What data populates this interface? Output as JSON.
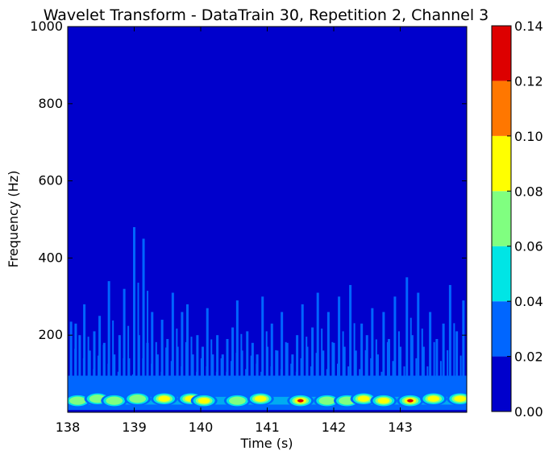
{
  "chart_data": {
    "type": "heatmap",
    "title": "Wavelet Transform - DataTrain 30, Repetition 2, Channel 3",
    "xlabel": "Time (s)",
    "ylabel": "Frequency (Hz)",
    "xlim": [
      138,
      144
    ],
    "ylim": [
      0,
      1000
    ],
    "x_ticks": [
      138,
      139,
      140,
      141,
      142,
      143
    ],
    "x_tick_labels": [
      "138",
      "139",
      "140",
      "141",
      "142",
      "143"
    ],
    "y_ticks": [
      200,
      400,
      600,
      800,
      1000
    ],
    "y_tick_labels": [
      "200",
      "400",
      "600",
      "800",
      "1000"
    ],
    "colorbar": {
      "levels": [
        0.0,
        0.02,
        0.04,
        0.06,
        0.08,
        0.1,
        0.12,
        0.14
      ],
      "tick_labels": [
        "0.00",
        "0.02",
        "0.04",
        "0.06",
        "0.08",
        "0.10",
        "0.12",
        "0.14"
      ],
      "colors": [
        "#0000cc",
        "#0066ff",
        "#00e5e5",
        "#80ff80",
        "#ffff00",
        "#ff7700",
        "#dd0000"
      ]
    },
    "background_level_color": "#0000cc",
    "spikes": [
      {
        "t": 138.05,
        "f": 235
      },
      {
        "t": 138.12,
        "f": 230
      },
      {
        "t": 138.18,
        "f": 200
      },
      {
        "t": 138.25,
        "f": 280
      },
      {
        "t": 138.33,
        "f": 160
      },
      {
        "t": 138.4,
        "f": 210
      },
      {
        "t": 138.48,
        "f": 250
      },
      {
        "t": 138.55,
        "f": 180
      },
      {
        "t": 138.62,
        "f": 340
      },
      {
        "t": 138.7,
        "f": 150
      },
      {
        "t": 138.78,
        "f": 200
      },
      {
        "t": 138.85,
        "f": 320
      },
      {
        "t": 138.92,
        "f": 140
      },
      {
        "t": 139.0,
        "f": 480
      },
      {
        "t": 139.07,
        "f": 200
      },
      {
        "t": 139.14,
        "f": 450
      },
      {
        "t": 139.2,
        "f": 180
      },
      {
        "t": 139.27,
        "f": 260
      },
      {
        "t": 139.35,
        "f": 150
      },
      {
        "t": 139.42,
        "f": 240
      },
      {
        "t": 139.5,
        "f": 190
      },
      {
        "t": 139.58,
        "f": 310
      },
      {
        "t": 139.65,
        "f": 170
      },
      {
        "t": 139.72,
        "f": 260
      },
      {
        "t": 139.8,
        "f": 280
      },
      {
        "t": 139.88,
        "f": 150
      },
      {
        "t": 139.95,
        "f": 200
      },
      {
        "t": 140.03,
        "f": 170
      },
      {
        "t": 140.1,
        "f": 270
      },
      {
        "t": 140.18,
        "f": 150
      },
      {
        "t": 140.25,
        "f": 200
      },
      {
        "t": 140.33,
        "f": 150
      },
      {
        "t": 140.4,
        "f": 190
      },
      {
        "t": 140.48,
        "f": 220
      },
      {
        "t": 140.55,
        "f": 290
      },
      {
        "t": 140.62,
        "f": 160
      },
      {
        "t": 140.7,
        "f": 210
      },
      {
        "t": 140.78,
        "f": 180
      },
      {
        "t": 140.85,
        "f": 150
      },
      {
        "t": 140.93,
        "f": 300
      },
      {
        "t": 141.0,
        "f": 170
      },
      {
        "t": 141.07,
        "f": 230
      },
      {
        "t": 141.15,
        "f": 160
      },
      {
        "t": 141.22,
        "f": 260
      },
      {
        "t": 141.3,
        "f": 180
      },
      {
        "t": 141.38,
        "f": 150
      },
      {
        "t": 141.45,
        "f": 200
      },
      {
        "t": 141.53,
        "f": 280
      },
      {
        "t": 141.6,
        "f": 170
      },
      {
        "t": 141.68,
        "f": 220
      },
      {
        "t": 141.76,
        "f": 310
      },
      {
        "t": 141.84,
        "f": 160
      },
      {
        "t": 141.92,
        "f": 260
      },
      {
        "t": 142.0,
        "f": 180
      },
      {
        "t": 142.08,
        "f": 300
      },
      {
        "t": 142.16,
        "f": 170
      },
      {
        "t": 142.25,
        "f": 330
      },
      {
        "t": 142.33,
        "f": 160
      },
      {
        "t": 142.42,
        "f": 230
      },
      {
        "t": 142.5,
        "f": 200
      },
      {
        "t": 142.58,
        "f": 270
      },
      {
        "t": 142.66,
        "f": 150
      },
      {
        "t": 142.75,
        "f": 260
      },
      {
        "t": 142.83,
        "f": 190
      },
      {
        "t": 142.92,
        "f": 300
      },
      {
        "t": 143.0,
        "f": 170
      },
      {
        "t": 143.1,
        "f": 350
      },
      {
        "t": 143.18,
        "f": 200
      },
      {
        "t": 143.27,
        "f": 310
      },
      {
        "t": 143.35,
        "f": 170
      },
      {
        "t": 143.45,
        "f": 260
      },
      {
        "t": 143.55,
        "f": 190
      },
      {
        "t": 143.65,
        "f": 230
      },
      {
        "t": 143.75,
        "f": 330
      },
      {
        "t": 143.85,
        "f": 210
      },
      {
        "t": 143.95,
        "f": 290
      }
    ],
    "hotspots": [
      {
        "t": 138.15,
        "f": 30,
        "v": 0.07
      },
      {
        "t": 138.45,
        "f": 35,
        "v": 0.07
      },
      {
        "t": 138.7,
        "f": 30,
        "v": 0.06
      },
      {
        "t": 139.05,
        "f": 35,
        "v": 0.07
      },
      {
        "t": 139.45,
        "f": 35,
        "v": 0.09
      },
      {
        "t": 139.85,
        "f": 35,
        "v": 0.09
      },
      {
        "t": 140.05,
        "f": 30,
        "v": 0.08
      },
      {
        "t": 140.55,
        "f": 30,
        "v": 0.06
      },
      {
        "t": 140.9,
        "f": 35,
        "v": 0.09
      },
      {
        "t": 141.5,
        "f": 30,
        "v": 0.13
      },
      {
        "t": 141.9,
        "f": 30,
        "v": 0.07
      },
      {
        "t": 142.2,
        "f": 30,
        "v": 0.07
      },
      {
        "t": 142.45,
        "f": 35,
        "v": 0.09
      },
      {
        "t": 142.75,
        "f": 30,
        "v": 0.08
      },
      {
        "t": 143.15,
        "f": 30,
        "v": 0.13
      },
      {
        "t": 143.5,
        "f": 35,
        "v": 0.09
      },
      {
        "t": 143.9,
        "f": 35,
        "v": 0.08
      }
    ]
  }
}
